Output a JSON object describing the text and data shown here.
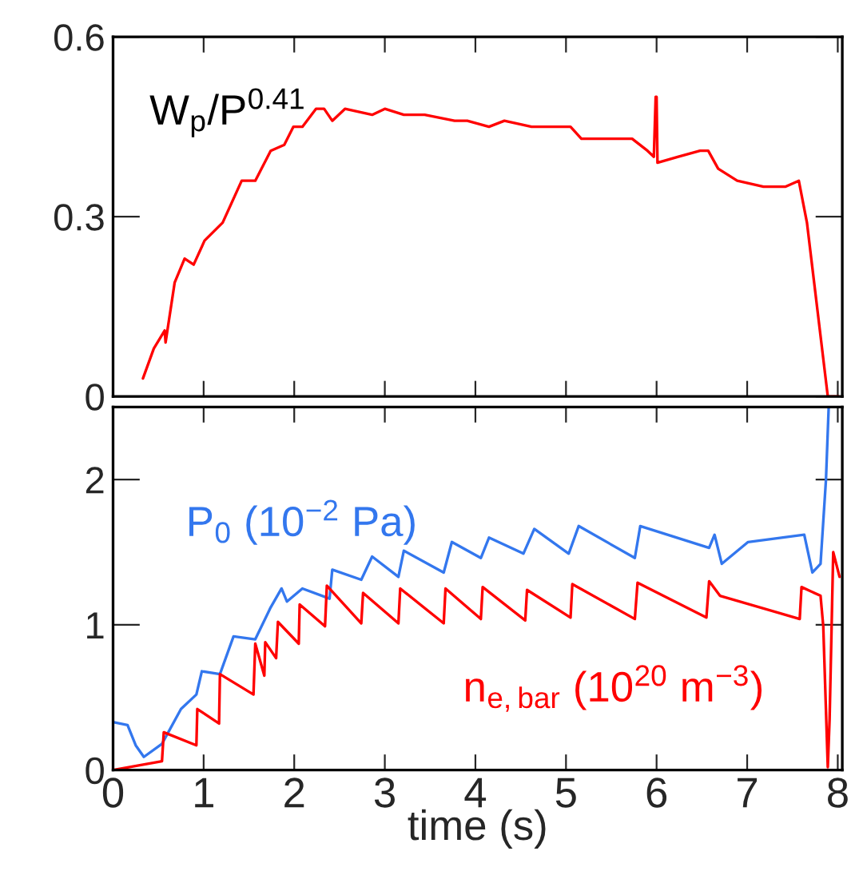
{
  "chart_data": [
    {
      "type": "line",
      "xlim": [
        0,
        8.05
      ],
      "xticks": [
        0,
        1,
        2,
        3,
        4,
        5,
        6,
        7,
        8
      ],
      "ylim": [
        0,
        0.6
      ],
      "yticks": [
        0,
        0.3,
        0.6
      ],
      "tick_labels": "y",
      "grid": false,
      "legend": false,
      "series": [
        {
          "name": "W$_{p}$/P$^{0.41}$",
          "color": "#ff0000",
          "x": [
            0.33,
            0.45,
            0.57,
            0.58,
            0.68,
            0.79,
            0.89,
            1.01,
            1.21,
            1.42,
            1.57,
            1.74,
            1.89,
            1.99,
            2.09,
            2.24,
            2.33,
            2.42,
            2.56,
            2.86,
            3.0,
            3.21,
            3.44,
            3.77,
            3.91,
            4.15,
            4.32,
            4.62,
            4.79,
            5.05,
            5.17,
            5.73,
            5.9,
            5.97,
            5.99,
            6.0,
            6.01,
            6.24,
            6.48,
            6.57,
            6.68,
            6.89,
            7.18,
            7.42,
            7.57,
            7.66,
            7.89,
            8.01
          ],
          "values": [
            0.03,
            0.08,
            0.11,
            0.09,
            0.19,
            0.23,
            0.22,
            0.26,
            0.29,
            0.36,
            0.36,
            0.41,
            0.42,
            0.45,
            0.45,
            0.48,
            0.48,
            0.46,
            0.48,
            0.47,
            0.48,
            0.47,
            0.47,
            0.46,
            0.46,
            0.45,
            0.46,
            0.45,
            0.45,
            0.45,
            0.43,
            0.43,
            0.41,
            0.4,
            0.5,
            0.5,
            0.39,
            0.4,
            0.41,
            0.41,
            0.38,
            0.36,
            0.35,
            0.35,
            0.36,
            0.29,
            0.0,
            0.0
          ]
        }
      ]
    },
    {
      "type": "line",
      "xlabel": "time (s)",
      "xlim": [
        0,
        8.05
      ],
      "xticks": [
        0,
        1,
        2,
        3,
        4,
        5,
        6,
        7,
        8
      ],
      "ylim": [
        0,
        2.5
      ],
      "yticks": [
        0,
        1,
        2
      ],
      "grid": false,
      "legend": false,
      "series": [
        {
          "name": "P$_{0}$ (10$^{−2}$ Pa)",
          "color": "#3377ee",
          "x": [
            0.0,
            0.16,
            0.25,
            0.34,
            0.54,
            0.75,
            0.92,
            0.98,
            1.18,
            1.33,
            1.57,
            1.74,
            1.86,
            1.92,
            2.09,
            2.39,
            2.42,
            2.74,
            2.86,
            3.15,
            3.21,
            3.65,
            3.74,
            4.06,
            4.15,
            4.53,
            4.65,
            5.03,
            5.14,
            5.76,
            5.82,
            6.58,
            6.64,
            6.72,
            7.01,
            7.63,
            7.72,
            7.81,
            7.87,
            7.9
          ],
          "values": [
            0.33,
            0.31,
            0.17,
            0.09,
            0.18,
            0.42,
            0.52,
            0.68,
            0.66,
            0.92,
            0.9,
            1.12,
            1.25,
            1.16,
            1.25,
            1.18,
            1.38,
            1.31,
            1.47,
            1.33,
            1.51,
            1.36,
            1.57,
            1.46,
            1.6,
            1.49,
            1.66,
            1.49,
            1.68,
            1.46,
            1.68,
            1.53,
            1.62,
            1.42,
            1.57,
            1.62,
            1.36,
            1.42,
            2.0,
            2.5
          ]
        },
        {
          "name": "n$_{e,bar}$ (10$^{20}$ m$^{−3}$)",
          "color": "#ff0000",
          "x": [
            0.0,
            0.54,
            0.56,
            0.92,
            0.93,
            1.17,
            1.18,
            1.55,
            1.57,
            1.67,
            1.68,
            1.8,
            1.82,
            2.05,
            2.06,
            2.34,
            2.36,
            2.74,
            2.76,
            3.15,
            3.17,
            3.65,
            3.67,
            4.06,
            4.08,
            4.55,
            4.57,
            5.05,
            5.07,
            5.76,
            5.79,
            6.55,
            6.58,
            6.7,
            7.58,
            7.6,
            7.81,
            7.84,
            7.89,
            7.91,
            7.95,
            8.02
          ],
          "values": [
            0.0,
            0.06,
            0.26,
            0.17,
            0.42,
            0.32,
            0.66,
            0.52,
            0.87,
            0.65,
            0.88,
            0.77,
            1.02,
            0.87,
            1.14,
            0.99,
            1.27,
            1.01,
            1.22,
            1.01,
            1.25,
            1.01,
            1.25,
            1.04,
            1.26,
            1.03,
            1.24,
            1.05,
            1.28,
            1.04,
            1.29,
            1.05,
            1.3,
            1.2,
            1.04,
            1.26,
            1.2,
            0.99,
            0.02,
            0.35,
            1.5,
            1.33
          ]
        }
      ]
    }
  ]
}
